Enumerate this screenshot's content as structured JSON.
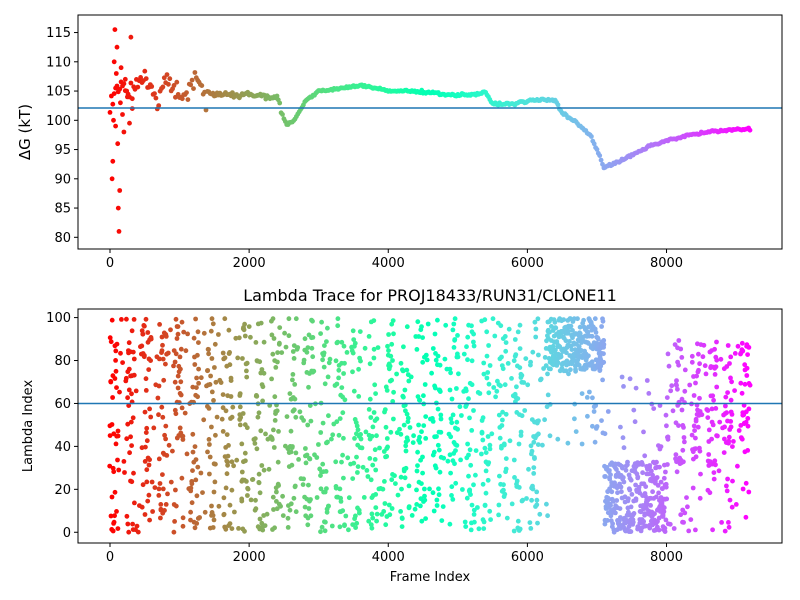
{
  "chart_data": [
    {
      "type": "scatter",
      "title": "",
      "xlabel": "",
      "ylabel": "ΔG (kT)",
      "xlim": [
        -460,
        9660
      ],
      "ylim": [
        78,
        118
      ],
      "xticks": [
        0,
        2000,
        4000,
        6000,
        8000
      ],
      "xtick_labels": [
        "0",
        "2000",
        "4000",
        "6000",
        "8000"
      ],
      "yticks": [
        80,
        85,
        90,
        95,
        100,
        105,
        110,
        115
      ],
      "ytick_labels": [
        "80",
        "85",
        "90",
        "95",
        "100",
        "105",
        "110",
        "115"
      ],
      "hline": 102.1,
      "hline_color": "#1f77b4",
      "colormap": "rainbow (red at frame 0 → purple at last frame)",
      "grid": false,
      "x_max_frame": 9200,
      "trend": [
        [
          0,
          102
        ],
        [
          200,
          106
        ],
        [
          400,
          105.5
        ],
        [
          600,
          106
        ],
        [
          800,
          105
        ],
        [
          1000,
          105.5
        ],
        [
          1200,
          105.8
        ],
        [
          1400,
          104.5
        ],
        [
          1600,
          104.5
        ],
        [
          1800,
          104.2
        ],
        [
          2000,
          104.6
        ],
        [
          2200,
          104.2
        ],
        [
          2400,
          103.8
        ],
        [
          2500,
          100.2
        ],
        [
          2550,
          99.3
        ],
        [
          2650,
          100
        ],
        [
          2800,
          103.2
        ],
        [
          3000,
          105
        ],
        [
          3200,
          105.3
        ],
        [
          3400,
          105.6
        ],
        [
          3600,
          106
        ],
        [
          3800,
          105.5
        ],
        [
          4000,
          105
        ],
        [
          4300,
          105
        ],
        [
          4600,
          104.8
        ],
        [
          4900,
          104.3
        ],
        [
          5200,
          104.4
        ],
        [
          5400,
          104.7
        ],
        [
          5500,
          102.8
        ],
        [
          5800,
          102.8
        ],
        [
          6000,
          103.3
        ],
        [
          6200,
          103.5
        ],
        [
          6400,
          103.4
        ],
        [
          6500,
          101.3
        ],
        [
          6700,
          99.6
        ],
        [
          6900,
          97.6
        ],
        [
          7000,
          95
        ],
        [
          7100,
          92
        ],
        [
          7200,
          92.3
        ],
        [
          7500,
          94
        ],
        [
          7800,
          95.8
        ],
        [
          8000,
          96.5
        ],
        [
          8300,
          97.4
        ],
        [
          8600,
          98
        ],
        [
          9000,
          98.4
        ],
        [
          9200,
          98.5
        ]
      ],
      "early_scatter": [
        [
          30,
          90
        ],
        [
          40,
          93
        ],
        [
          50,
          100
        ],
        [
          60,
          110
        ],
        [
          70,
          115.5
        ],
        [
          80,
          99
        ],
        [
          90,
          108
        ],
        [
          100,
          112.5
        ],
        [
          110,
          96
        ],
        [
          120,
          85
        ],
        [
          130,
          81
        ],
        [
          140,
          88
        ],
        [
          150,
          103
        ],
        [
          160,
          109
        ],
        [
          180,
          101
        ],
        [
          200,
          98
        ],
        [
          220,
          107
        ],
        [
          250,
          104
        ],
        [
          280,
          99.5
        ],
        [
          300,
          114.2
        ],
        [
          320,
          102
        ]
      ]
    },
    {
      "type": "scatter",
      "title": "Lambda Trace for PROJ18433/RUN31/CLONE11",
      "xlabel": "Frame Index",
      "ylabel": "Lambda Index",
      "xlim": [
        -460,
        9660
      ],
      "ylim": [
        -5,
        104
      ],
      "xticks": [
        0,
        2000,
        4000,
        6000,
        8000
      ],
      "xtick_labels": [
        "0",
        "2000",
        "4000",
        "6000",
        "8000"
      ],
      "yticks": [
        0,
        20,
        40,
        60,
        80,
        100
      ],
      "ytick_labels": [
        "0",
        "20",
        "40",
        "60",
        "80",
        "100"
      ],
      "hline": 60,
      "hline_color": "#1f77b4",
      "colormap": "rainbow (red at frame 0 → purple at last frame)",
      "grid": false,
      "x_max_frame": 9200,
      "regions": [
        {
          "x": [
            0,
            9200
          ],
          "y": [
            0,
            100
          ],
          "density": "dense vertical streaks"
        },
        {
          "x": [
            6300,
            7100
          ],
          "y": [
            75,
            100
          ],
          "density": "very dense cluster"
        },
        {
          "x": [
            7100,
            8000
          ],
          "y": [
            0,
            35
          ],
          "density": "very dense cluster"
        }
      ]
    }
  ]
}
